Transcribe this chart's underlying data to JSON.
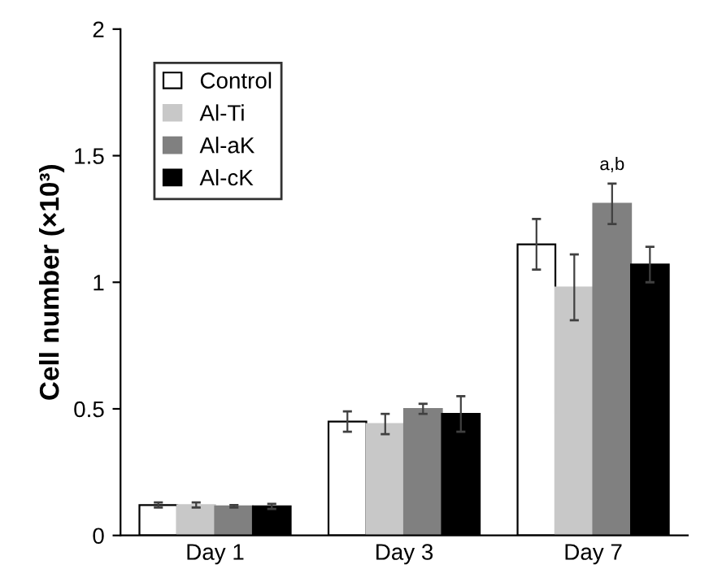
{
  "chart_data": {
    "type": "bar",
    "ylabel": "Cell number (×10³)",
    "categories": [
      "Day 1",
      "Day 3",
      "Day 7"
    ],
    "series": [
      {
        "name": "Control",
        "color": "#ffffff",
        "values": [
          0.12,
          0.45,
          1.15
        ],
        "errors": [
          0.01,
          0.04,
          0.1
        ]
      },
      {
        "name": "Al-Ti",
        "color": "#c8c8c8",
        "values": [
          0.12,
          0.44,
          0.98
        ],
        "errors": [
          0.01,
          0.04,
          0.13
        ]
      },
      {
        "name": "Al-aK",
        "color": "#808080",
        "values": [
          0.115,
          0.5,
          1.31
        ],
        "errors": [
          0.005,
          0.02,
          0.08
        ]
      },
      {
        "name": "Al-cK",
        "color": "#000000",
        "values": [
          0.115,
          0.48,
          1.07
        ],
        "errors": [
          0.01,
          0.07,
          0.07
        ]
      }
    ],
    "annotations": [
      "a,b"
    ],
    "ylim": [
      0,
      2
    ],
    "yticks": [
      0,
      {
        "value": 0.5,
        "label": "0.5"
      },
      1,
      {
        "value": 1.5,
        "label": "1.5"
      },
      2
    ],
    "legend": "top left",
    "grid": false
  }
}
